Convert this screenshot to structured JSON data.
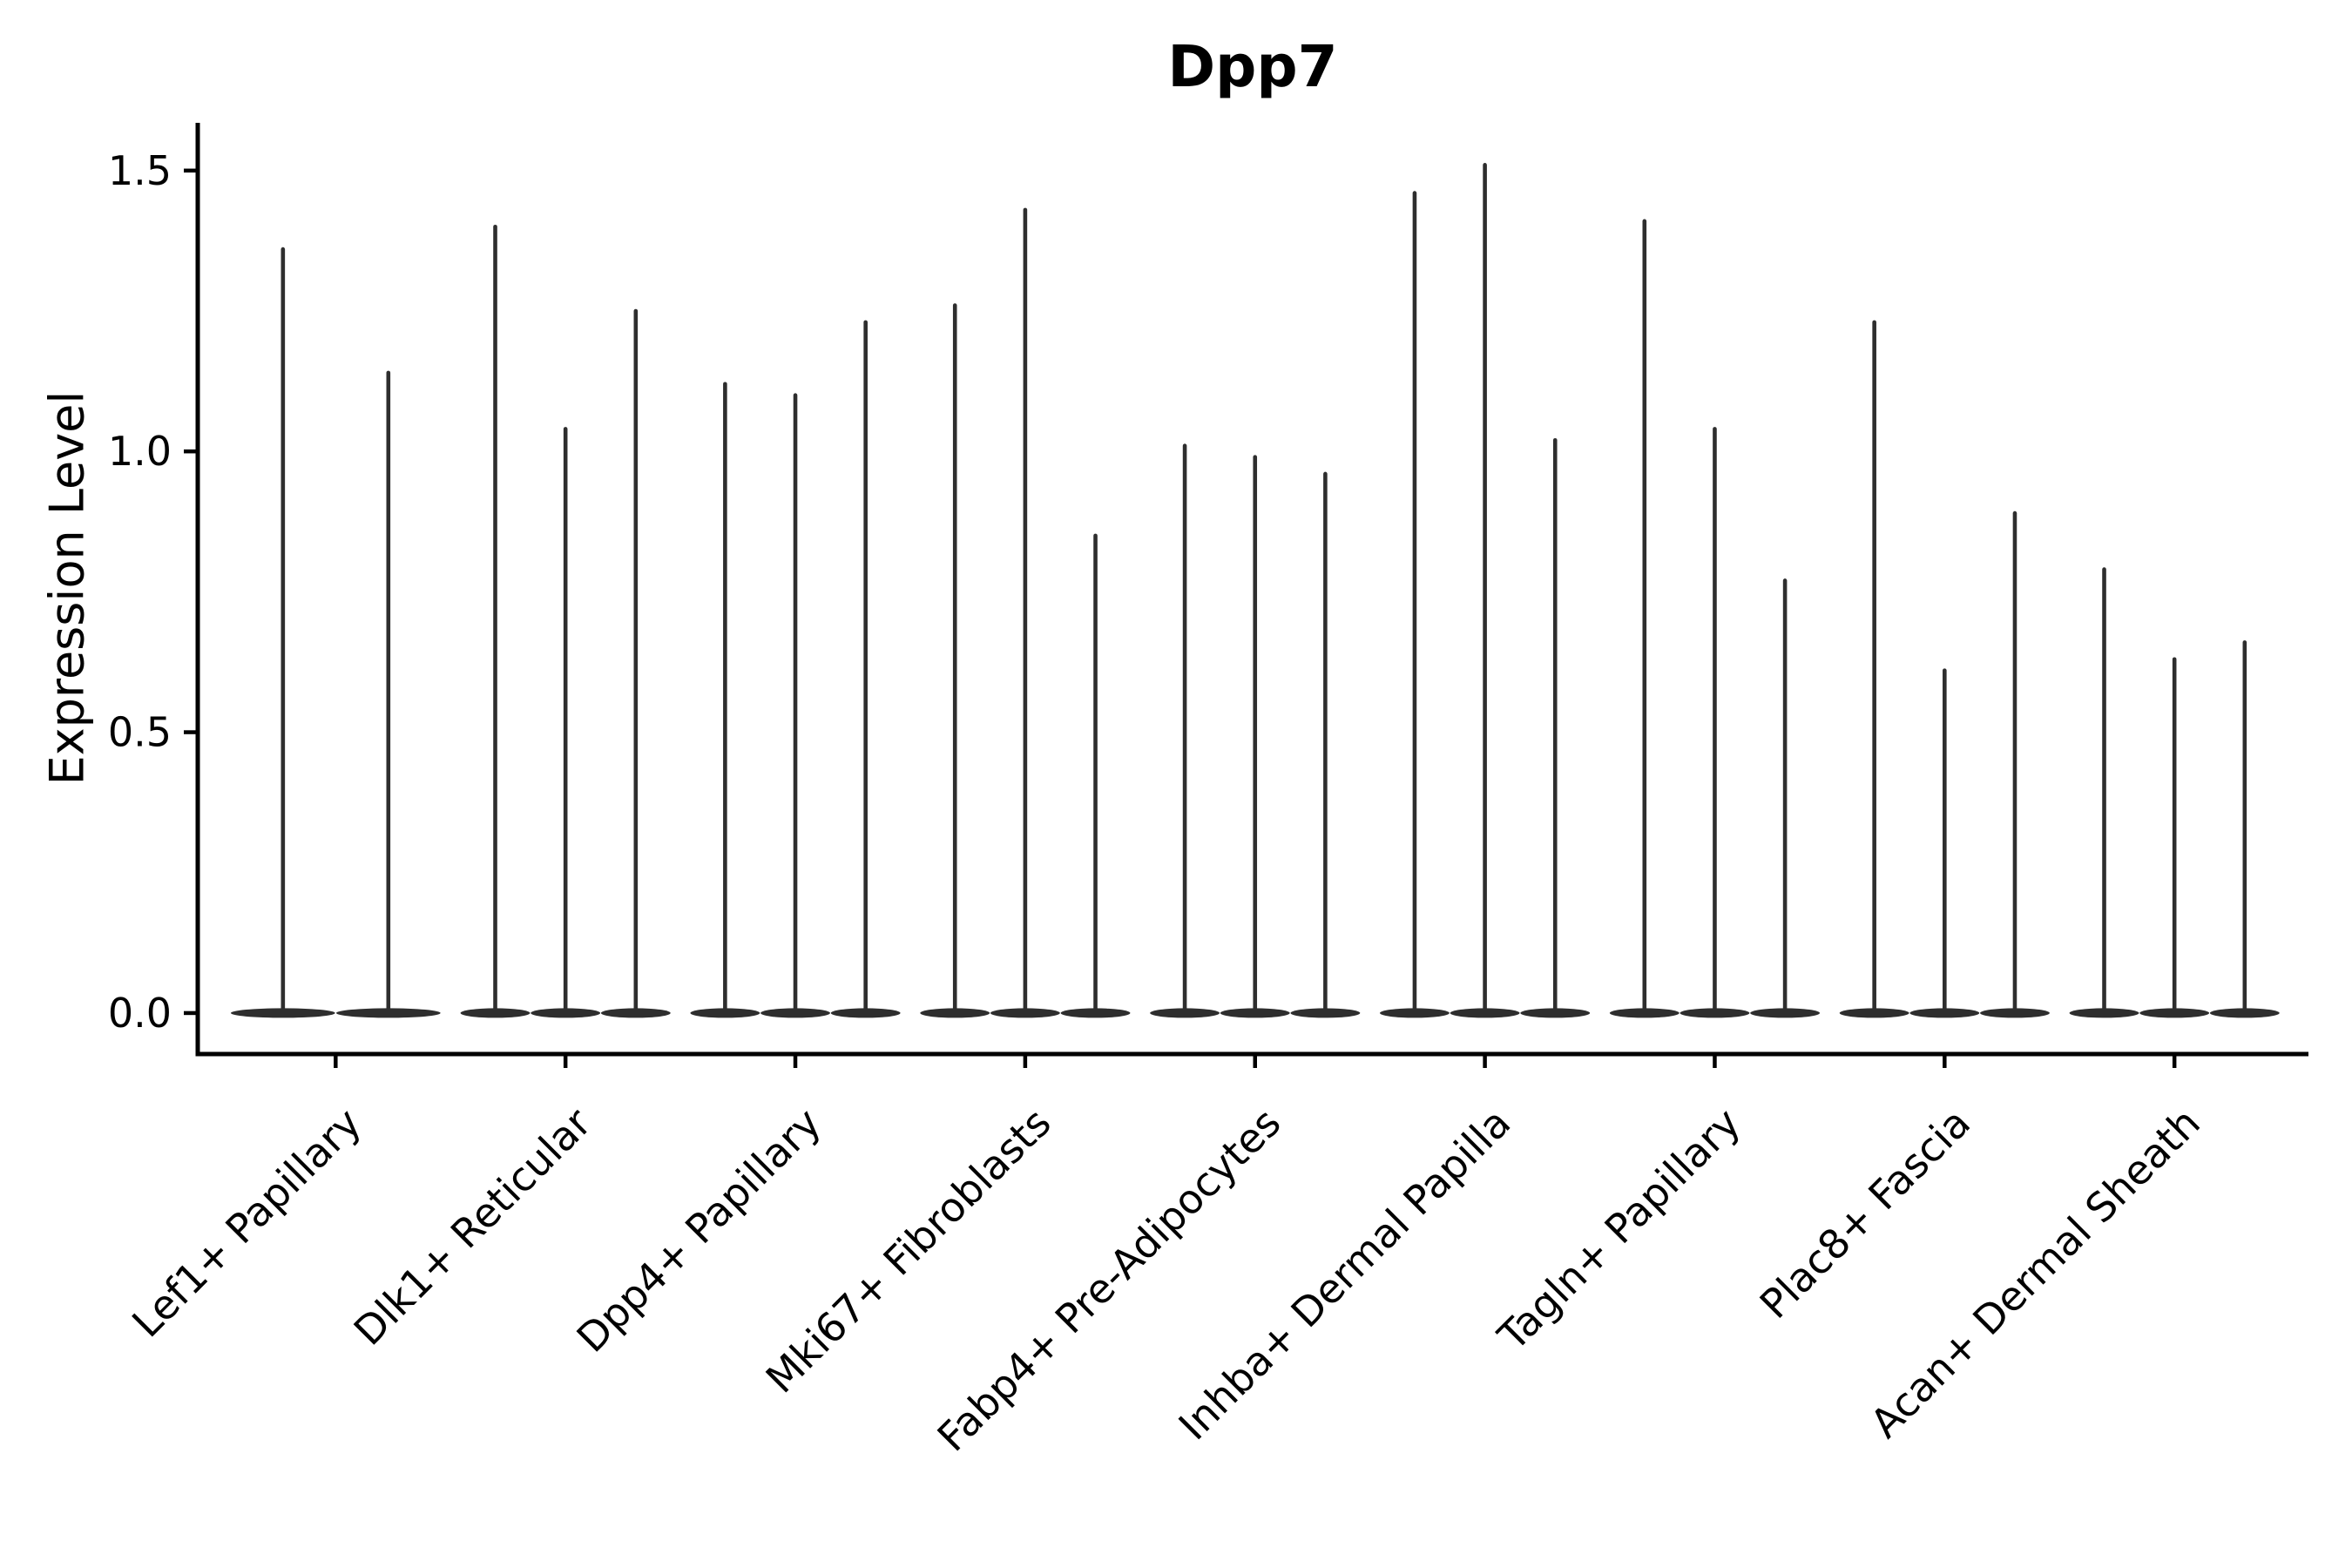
{
  "title": "Dpp7",
  "colors": {
    "violin": "#2e2e2e",
    "axis": "#000000",
    "text": "#000000",
    "background": "#ffffff"
  },
  "chart_data": {
    "type": "violin",
    "title": "Dpp7",
    "ylabel": "Expression Level",
    "xlabel": "",
    "grid": false,
    "legend": "none",
    "yticks": [
      0.0,
      0.5,
      1.0,
      1.5
    ],
    "ytick_labels": [
      "0.0",
      "0.5",
      "1.0",
      "1.5"
    ],
    "ylim": [
      -0.073,
      1.585
    ],
    "xlim": [
      -0.6,
      8.583
    ],
    "group_total_width": 0.917,
    "categories": [
      "Lef1+ Papillary",
      "Dlk1+ Reticular",
      "Dpp4+ Papillary",
      "Mki67+ Fibroblasts",
      "Fabp4+ Pre-Adipocytes",
      "Inhba+ Dermal Papilla",
      "Tagln+ Papillary",
      "Plac8+ Fascia",
      "Acan+ Dermal Sheath"
    ],
    "groups": [
      {
        "label": "Lef1+ Papillary",
        "violin_maxima": [
          1.36,
          1.14
        ]
      },
      {
        "label": "Dlk1+ Reticular",
        "violin_maxima": [
          1.4,
          1.04,
          1.25
        ]
      },
      {
        "label": "Dpp4+ Papillary",
        "violin_maxima": [
          1.12,
          1.1,
          1.23
        ]
      },
      {
        "label": "Mki67+ Fibroblasts",
        "violin_maxima": [
          1.26,
          1.43,
          0.85
        ]
      },
      {
        "label": "Fabp4+ Pre-Adipocytes",
        "violin_maxima": [
          1.01,
          0.99,
          0.96
        ]
      },
      {
        "label": "Inhba+ Dermal Papilla",
        "violin_maxima": [
          1.46,
          1.51,
          1.02
        ]
      },
      {
        "label": "Tagln+ Papillary",
        "violin_maxima": [
          1.41,
          1.04,
          0.77
        ]
      },
      {
        "label": "Plac8+ Fascia",
        "violin_maxima": [
          1.23,
          0.61,
          0.89
        ]
      },
      {
        "label": "Acan+ Dermal Sheath",
        "violin_maxima": [
          0.79,
          0.63,
          0.66
        ]
      }
    ],
    "note": "Single-cell expression violins: bulk of values at 0 (flat base blob) with a thin spike rising to the maximum expression value."
  }
}
